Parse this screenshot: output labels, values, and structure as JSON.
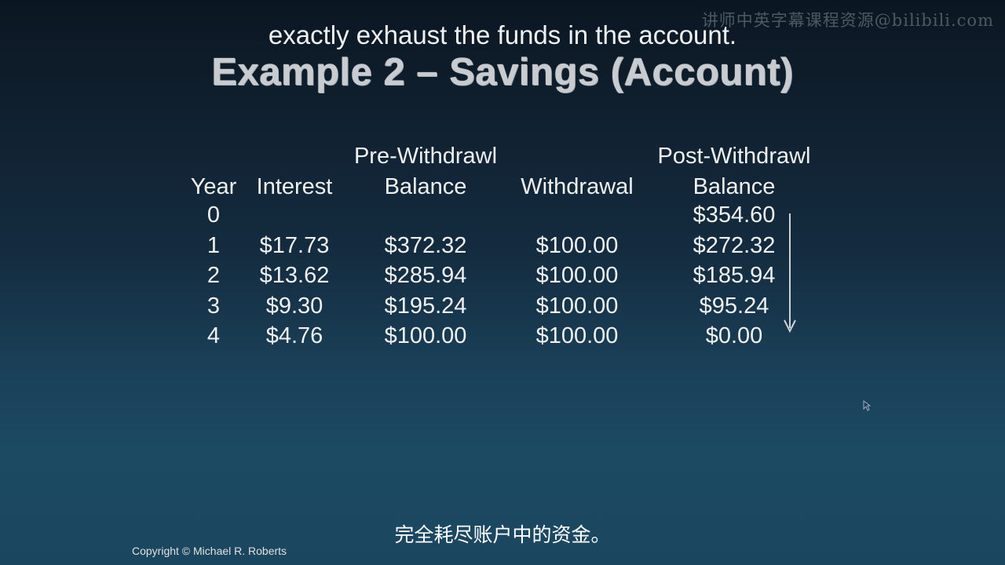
{
  "watermark": "讲师中英字幕课程资源@bilibili.com",
  "subtitle_top": "exactly exhaust the funds in the account.",
  "slide_title": "Example 2 – Savings (Account)",
  "table": {
    "headers": {
      "year": "Year",
      "interest": "Interest",
      "pre_line1": "Pre-Withdrawl",
      "pre_line2": "Balance",
      "withdrawal": "Withdrawal",
      "post_line1": "Post-Withdrawl",
      "post_line2": "Balance"
    },
    "rows": [
      {
        "year": "0",
        "interest": "",
        "pre": "",
        "withdrawal": "",
        "post": "$354.60"
      },
      {
        "year": "1",
        "interest": "$17.73",
        "pre": "$372.32",
        "withdrawal": "$100.00",
        "post": "$272.32"
      },
      {
        "year": "2",
        "interest": "$13.62",
        "pre": "$285.94",
        "withdrawal": "$100.00",
        "post": "$185.94"
      },
      {
        "year": "3",
        "interest": "$9.30",
        "pre": "$195.24",
        "withdrawal": "$100.00",
        "post": "$95.24"
      },
      {
        "year": "4",
        "interest": "$4.76",
        "pre": "$100.00",
        "withdrawal": "$100.00",
        "post": "$0.00"
      }
    ]
  },
  "caption_bottom": "完全耗尽账户中的资金。",
  "copyright": "Copyright © Michael R. Roberts",
  "colors": {
    "background_top": "#0b1622",
    "background_bottom": "#1b4660",
    "text": "#f0f0f0",
    "title": "#c8cbcf"
  },
  "icons": {
    "arrow": "down-arrow-icon",
    "cursor": "mouse-cursor-icon"
  }
}
